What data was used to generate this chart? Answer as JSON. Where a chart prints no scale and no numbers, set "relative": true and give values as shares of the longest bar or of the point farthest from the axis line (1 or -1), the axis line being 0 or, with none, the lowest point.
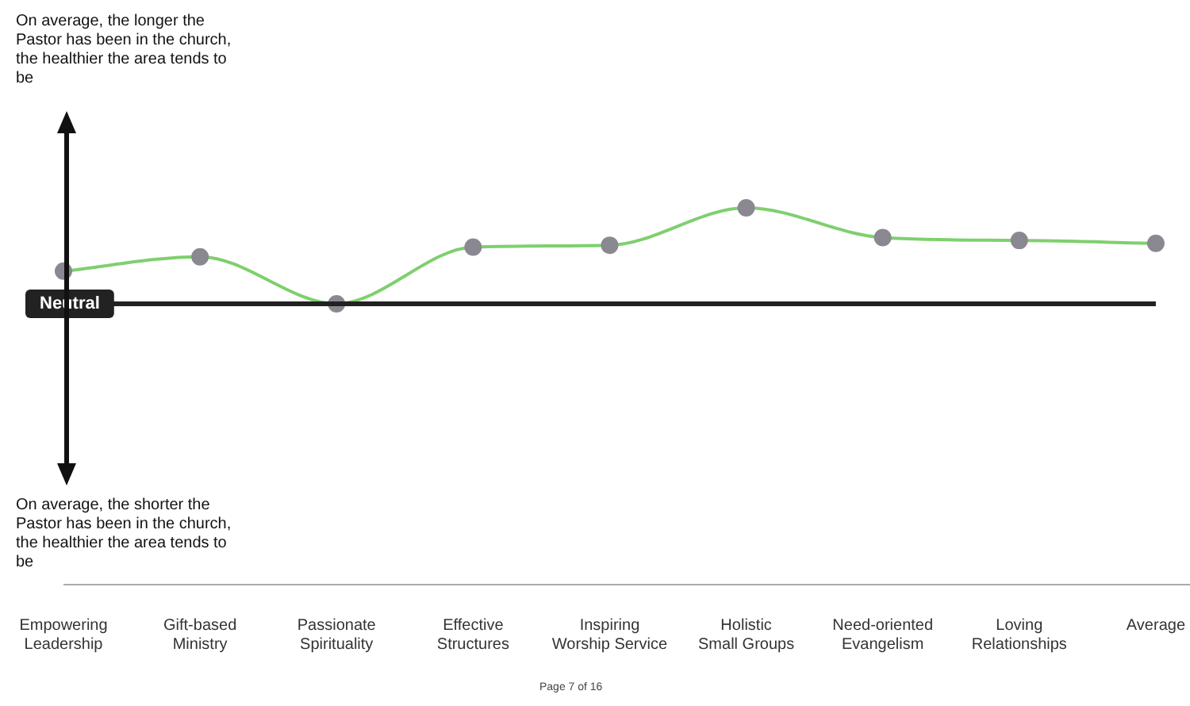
{
  "chart_data": {
    "type": "line",
    "relative": true,
    "categories": [
      "Empowering Leadership",
      "Gift-based Ministry",
      "Passionate Spirituality",
      "Effective Structures",
      "Inspiring Worship Service",
      "Holistic Small Groups",
      "Need-oriented Evangelism",
      "Loving Relationships",
      "Average"
    ],
    "series": [
      {
        "color": "#7fcf6f",
        "values": [
          0.34,
          0.49,
          0,
          0.59,
          0.61,
          1,
          0.69,
          0.66,
          0.63
        ]
      }
    ],
    "marker": "circle",
    "grid": false,
    "legend": false,
    "ref_lines": [
      {
        "axis": "y",
        "value": 0,
        "label": "Neutral",
        "color": "#222222"
      }
    ],
    "annotations": [
      "On average, the longer the Pastor has been in the church, the healthier the area tends to be",
      "On average, the shorter the Pastor has been in the church, the healthier the area tends to be",
      "Page 7 of 16"
    ]
  }
}
